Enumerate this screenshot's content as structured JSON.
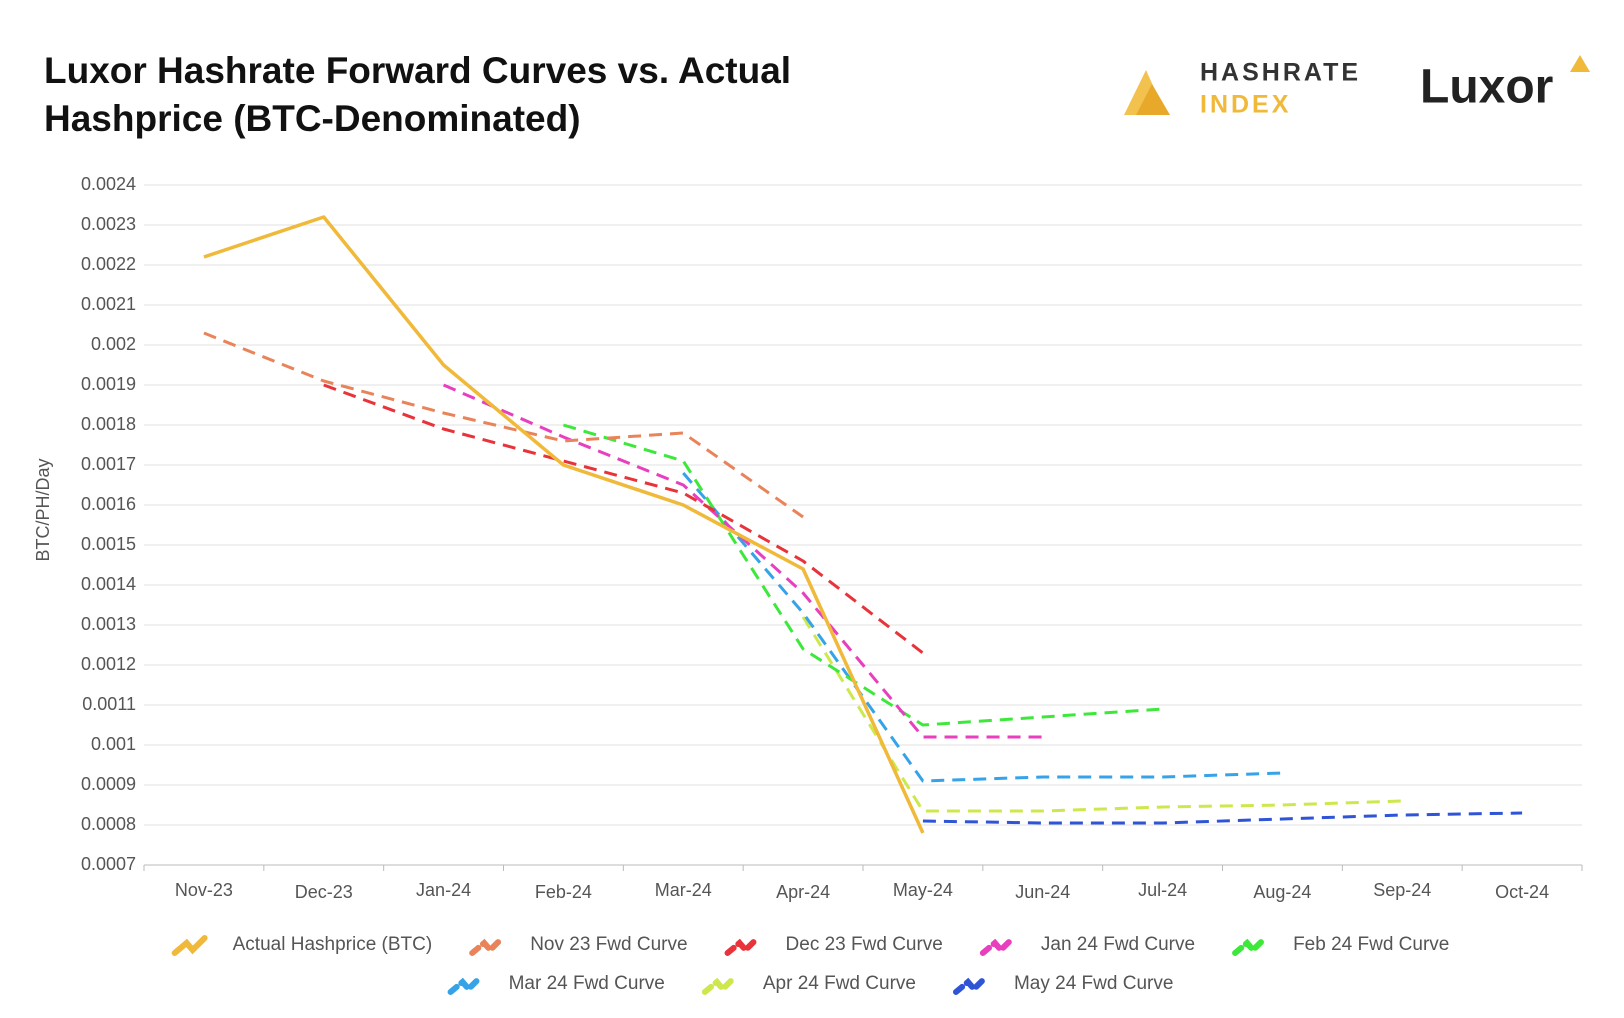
{
  "branding": {
    "index_top": "HASHRATE",
    "index_bottom": "INDEX",
    "company": "Luxor"
  },
  "chart_data": {
    "type": "line",
    "title": [
      "Luxor Hashrate Forward Curves vs. Actual",
      "Hashprice (BTC-Denominated)"
    ],
    "y_label": "BTC/PH/Day",
    "categories": [
      "Nov-23",
      "Dec-23",
      "Jan-24",
      "Feb-24",
      "Mar-24",
      "Apr-24",
      "May-24",
      "Jun-24",
      "Jul-24",
      "Aug-24",
      "Sep-24",
      "Oct-24"
    ],
    "ylim": [
      0.0007,
      0.0024
    ],
    "yticks": [
      0.0007,
      0.0008,
      0.0009,
      0.001,
      0.0011,
      0.0012,
      0.0013,
      0.0014,
      0.0015,
      0.0016,
      0.0017,
      0.0018,
      0.0019,
      0.002,
      0.0021,
      0.0022,
      0.0023,
      0.0024
    ],
    "grid": true,
    "series": [
      {
        "name": "Actual Hashprice (BTC)",
        "color": "#f0b93a",
        "dashed": false,
        "values": [
          0.00222,
          0.00232,
          0.00195,
          0.0017,
          0.0016,
          0.00144,
          0.00078,
          null,
          null,
          null,
          null,
          null
        ]
      },
      {
        "name": "Nov 23 Fwd Curve",
        "color": "#e9845a",
        "dashed": true,
        "values": [
          0.00203,
          0.00191,
          0.00183,
          0.00176,
          0.00178,
          0.00157,
          null,
          null,
          null,
          null,
          null,
          null
        ]
      },
      {
        "name": "Dec 23 Fwd Curve",
        "color": "#e8333a",
        "dashed": true,
        "values": [
          null,
          0.0019,
          0.00179,
          0.00171,
          0.00163,
          0.00146,
          0.00123,
          null,
          null,
          null,
          null,
          null
        ]
      },
      {
        "name": "Jan 24 Fwd Curve",
        "color": "#e83fbf",
        "dashed": true,
        "values": [
          null,
          null,
          0.0019,
          0.00177,
          0.00165,
          0.00138,
          0.00102,
          0.00102,
          null,
          null,
          null,
          null
        ]
      },
      {
        "name": "Feb 24 Fwd Curve",
        "color": "#3de83a",
        "dashed": true,
        "values": [
          null,
          null,
          null,
          0.0018,
          0.00171,
          0.00124,
          0.00105,
          0.00107,
          0.00109,
          null,
          null,
          null
        ]
      },
      {
        "name": "Mar 24 Fwd Curve",
        "color": "#36a3e8",
        "dashed": true,
        "values": [
          null,
          null,
          null,
          null,
          0.00168,
          0.00133,
          0.00091,
          0.00092,
          0.00092,
          0.00093,
          null,
          null
        ]
      },
      {
        "name": "Apr 24 Fwd Curve",
        "color": "#cde84c",
        "dashed": true,
        "values": [
          null,
          null,
          null,
          null,
          null,
          0.00132,
          0.000835,
          0.000835,
          0.000845,
          0.00085,
          0.00086,
          null
        ]
      },
      {
        "name": "May 24 Fwd Curve",
        "color": "#2f55d6",
        "dashed": true,
        "values": [
          null,
          null,
          null,
          null,
          null,
          null,
          0.00081,
          0.000805,
          0.000805,
          0.000815,
          0.000825,
          0.00083
        ]
      }
    ]
  }
}
